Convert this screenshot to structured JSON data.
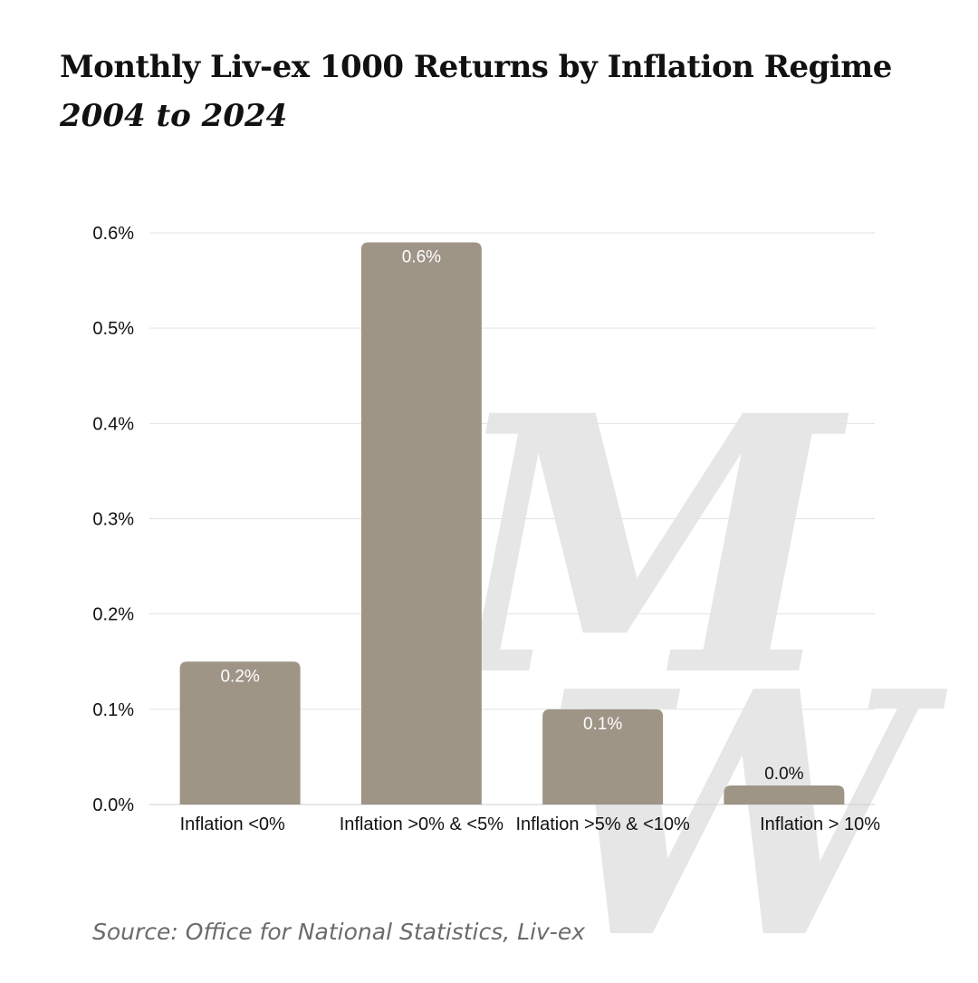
{
  "title": "Monthly Liv-ex 1000 Returns by Inflation Regime",
  "subtitle": "2004 to 2024",
  "source": "Source: Office for National Statistics, Liv-ex",
  "watermark": {
    "letters": [
      "M",
      "W"
    ]
  },
  "colors": {
    "bar": "#9e9587",
    "grid": "#e3e3e3",
    "axis": "#cfcfcf",
    "text": "#111111",
    "label_inside": "#ffffff",
    "watermark": "#e6e6e6"
  },
  "chart_data": {
    "type": "bar",
    "title": "Monthly Liv-ex 1000 Returns by Inflation Regime",
    "subtitle": "2004 to 2024",
    "categories": [
      "Inflation <0%",
      "Inflation >0% & <5%",
      "Inflation >5% & <10%",
      "Inflation > 10%"
    ],
    "values": [
      0.0015,
      0.0059,
      0.001,
      0.0002
    ],
    "data_labels": [
      "0.2%",
      "0.6%",
      "0.1%",
      "0.0%"
    ],
    "ylim": [
      0,
      0.006
    ],
    "yticks": [
      0,
      0.001,
      0.002,
      0.003,
      0.004,
      0.005,
      0.006
    ],
    "ytick_labels": [
      "0.0%",
      "0.1%",
      "0.2%",
      "0.3%",
      "0.4%",
      "0.5%",
      "0.6%"
    ],
    "grid": true,
    "legend": "none"
  }
}
